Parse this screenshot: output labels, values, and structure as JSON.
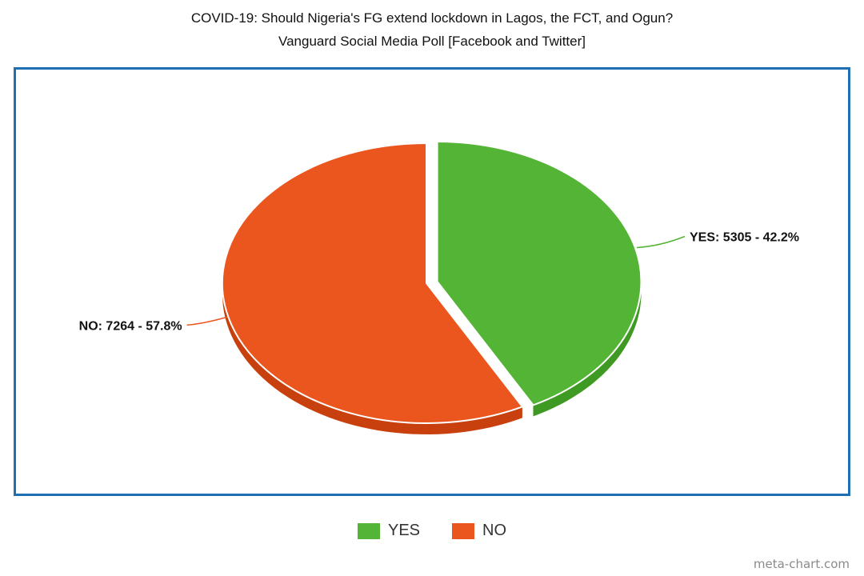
{
  "chart_data": {
    "type": "pie",
    "title": "COVID-19: Should Nigeria's FG extend lockdown in Lagos, the FCT, and Ogun?",
    "subtitle": "Vanguard Social Media Poll [Facebook and Twitter]",
    "slices": [
      {
        "name": "YES",
        "value": 5305,
        "percent": 42.2,
        "label": "YES: 5305 - 42.2%",
        "color": "#54b435",
        "side_color": "#3e9a22",
        "exploded": true
      },
      {
        "name": "NO",
        "value": 7264,
        "percent": 57.8,
        "label": "NO: 7264 - 57.8%",
        "color": "#eb561e",
        "side_color": "#c9400f",
        "exploded": false
      }
    ],
    "legend": {
      "placement": "bottom",
      "items": [
        "YES",
        "NO"
      ]
    },
    "three_d": true
  },
  "watermark": "meta-chart.com"
}
